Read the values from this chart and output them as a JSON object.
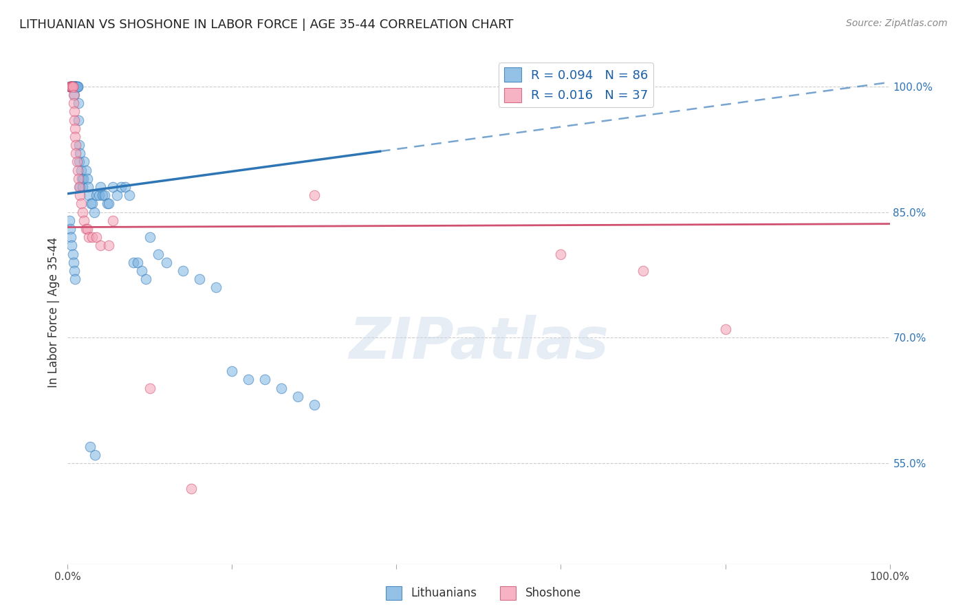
{
  "title": "LITHUANIAN VS SHOSHONE IN LABOR FORCE | AGE 35-44 CORRELATION CHART",
  "source": "Source: ZipAtlas.com",
  "ylabel": "In Labor Force | Age 35-44",
  "xlim": [
    0.0,
    1.0
  ],
  "ylim": [
    0.43,
    1.03
  ],
  "ytick_positions": [
    0.55,
    0.7,
    0.85,
    1.0
  ],
  "ytick_labels": [
    "55.0%",
    "70.0%",
    "85.0%",
    "100.0%"
  ],
  "watermark": "ZIPatlas",
  "legend_blue_R": "R = 0.094",
  "legend_blue_N": "N = 86",
  "legend_pink_R": "R = 0.016",
  "legend_pink_N": "N = 37",
  "blue_color": "#7ab3e0",
  "pink_color": "#f4a0b5",
  "blue_line_color": "#2e75b6",
  "pink_line_color": "#d05070",
  "blue_scatter_x": [
    0.002,
    0.003,
    0.003,
    0.004,
    0.004,
    0.004,
    0.005,
    0.005,
    0.005,
    0.006,
    0.006,
    0.006,
    0.007,
    0.007,
    0.007,
    0.008,
    0.008,
    0.008,
    0.008,
    0.009,
    0.009,
    0.009,
    0.01,
    0.01,
    0.01,
    0.01,
    0.011,
    0.011,
    0.012,
    0.012,
    0.013,
    0.013,
    0.014,
    0.014,
    0.015,
    0.015,
    0.016,
    0.017,
    0.018,
    0.019,
    0.02,
    0.022,
    0.024,
    0.025,
    0.026,
    0.028,
    0.03,
    0.032,
    0.035,
    0.038,
    0.04,
    0.042,
    0.045,
    0.048,
    0.05,
    0.055,
    0.06,
    0.065,
    0.07,
    0.075,
    0.08,
    0.085,
    0.09,
    0.095,
    0.1,
    0.11,
    0.12,
    0.14,
    0.16,
    0.18,
    0.2,
    0.22,
    0.24,
    0.26,
    0.28,
    0.3,
    0.002,
    0.003,
    0.004,
    0.005,
    0.006,
    0.007,
    0.008,
    0.009,
    0.027,
    0.033
  ],
  "blue_scatter_y": [
    1.0,
    1.0,
    1.0,
    1.0,
    1.0,
    1.0,
    1.0,
    1.0,
    1.0,
    1.0,
    1.0,
    1.0,
    1.0,
    1.0,
    1.0,
    1.0,
    1.0,
    1.0,
    0.99,
    1.0,
    1.0,
    1.0,
    1.0,
    1.0,
    1.0,
    1.0,
    1.0,
    1.0,
    1.0,
    1.0,
    0.98,
    0.96,
    0.93,
    0.91,
    0.92,
    0.88,
    0.9,
    0.89,
    0.88,
    0.89,
    0.91,
    0.9,
    0.89,
    0.88,
    0.87,
    0.86,
    0.86,
    0.85,
    0.87,
    0.87,
    0.88,
    0.87,
    0.87,
    0.86,
    0.86,
    0.88,
    0.87,
    0.88,
    0.88,
    0.87,
    0.79,
    0.79,
    0.78,
    0.77,
    0.82,
    0.8,
    0.79,
    0.78,
    0.77,
    0.76,
    0.66,
    0.65,
    0.65,
    0.64,
    0.63,
    0.62,
    0.84,
    0.83,
    0.82,
    0.81,
    0.8,
    0.79,
    0.78,
    0.77,
    0.57,
    0.56
  ],
  "pink_scatter_x": [
    0.003,
    0.004,
    0.004,
    0.005,
    0.005,
    0.006,
    0.006,
    0.007,
    0.007,
    0.008,
    0.008,
    0.009,
    0.009,
    0.01,
    0.01,
    0.011,
    0.012,
    0.013,
    0.014,
    0.015,
    0.016,
    0.018,
    0.02,
    0.022,
    0.024,
    0.026,
    0.03,
    0.035,
    0.04,
    0.05,
    0.055,
    0.3,
    0.6,
    0.7,
    0.8,
    0.1,
    0.15
  ],
  "pink_scatter_y": [
    1.0,
    1.0,
    1.0,
    1.0,
    1.0,
    1.0,
    1.0,
    0.99,
    0.98,
    0.97,
    0.96,
    0.95,
    0.94,
    0.93,
    0.92,
    0.91,
    0.9,
    0.89,
    0.88,
    0.87,
    0.86,
    0.85,
    0.84,
    0.83,
    0.83,
    0.82,
    0.82,
    0.82,
    0.81,
    0.81,
    0.84,
    0.87,
    0.8,
    0.78,
    0.71,
    0.64,
    0.52
  ],
  "blue_trend_y_start": 0.872,
  "blue_trend_y_end": 1.005,
  "blue_trend_solid_end_x": 0.38,
  "pink_trend_y_start": 0.832,
  "pink_trend_y_end": 0.836
}
